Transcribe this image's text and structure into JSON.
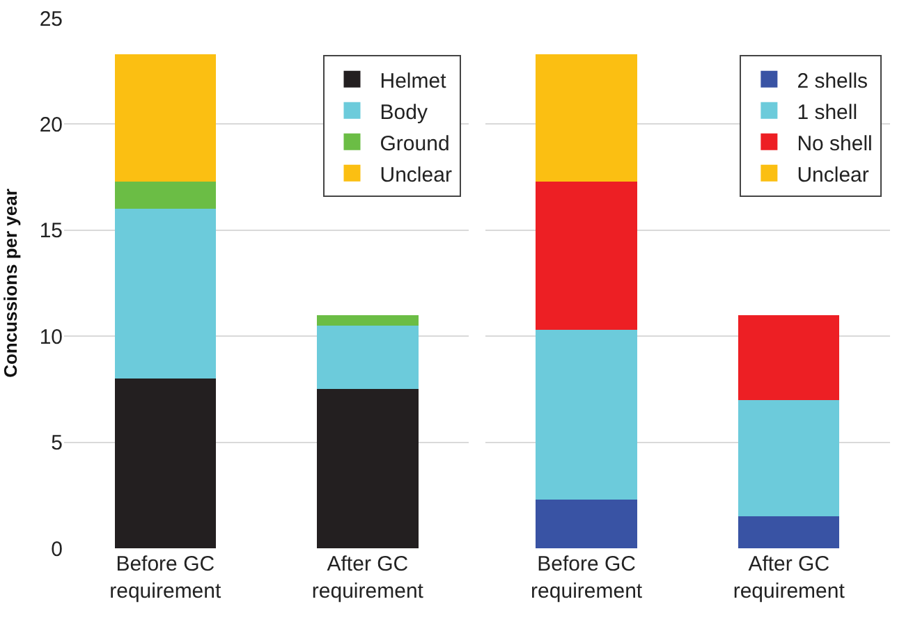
{
  "chart_data": [
    {
      "type": "bar",
      "stacked": true,
      "ylabel": "Concussions per year",
      "categories": [
        "Before GC\nrequirement",
        "After GC\nrequirement"
      ],
      "ylim": [
        0,
        25
      ],
      "yticks": [
        0,
        5,
        10,
        15,
        20,
        25
      ],
      "grid": "y",
      "legend": "top right",
      "series": [
        {
          "name": "Helmet",
          "color": "#231f20",
          "values": [
            8,
            7.5
          ]
        },
        {
          "name": "Body",
          "color": "#6ccbdb",
          "values": [
            8,
            3
          ]
        },
        {
          "name": "Ground",
          "color": "#6bbd45",
          "values": [
            1.3,
            0.5
          ]
        },
        {
          "name": "Unclear",
          "color": "#fbbf12",
          "values": [
            6,
            null
          ]
        }
      ]
    },
    {
      "type": "bar",
      "stacked": true,
      "categories": [
        "Before GC\nrequirement",
        "After GC\nrequirement"
      ],
      "ylim": [
        0,
        25
      ],
      "yticks": [
        0,
        5,
        10,
        15,
        20,
        25
      ],
      "grid": "y",
      "legend": "top right",
      "tick_labels": "x",
      "series": [
        {
          "name": "2 shells",
          "color": "#3953a4",
          "values": [
            2.3,
            1.5
          ]
        },
        {
          "name": "1 shell",
          "color": "#6ccbdb",
          "values": [
            8,
            5.5
          ]
        },
        {
          "name": "No shell",
          "color": "#ed1f24",
          "values": [
            7,
            4
          ]
        },
        {
          "name": "Unclear",
          "color": "#fbbf12",
          "values": [
            6,
            null
          ]
        }
      ]
    }
  ]
}
